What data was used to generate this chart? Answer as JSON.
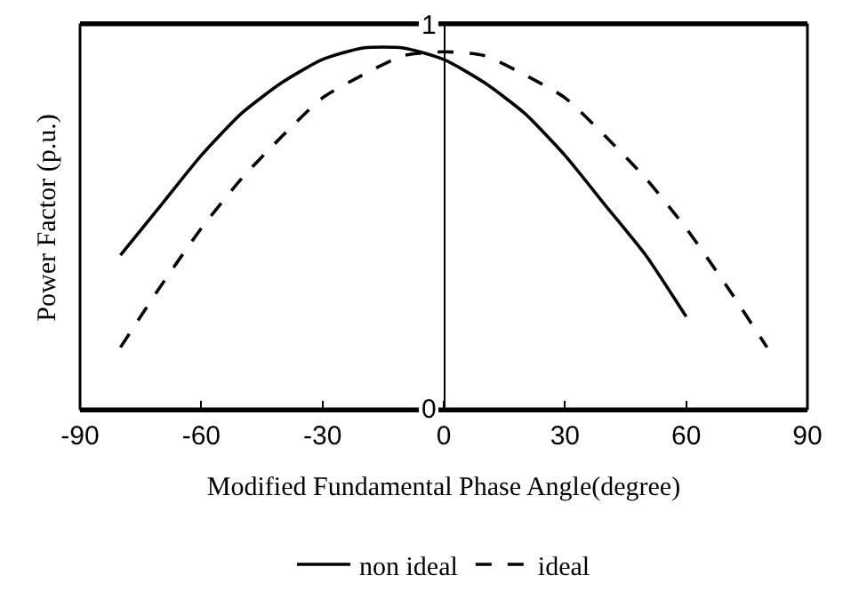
{
  "chart_data": {
    "type": "line",
    "xlabel": "Modified Fundamental Phase Angle(degree)",
    "ylabel": "Power Factor (p.u.)",
    "xlim": [
      -90,
      90
    ],
    "xticks": [
      -90,
      -60,
      -30,
      0,
      30,
      60,
      90
    ],
    "ylim": [
      0,
      1
    ],
    "yticks": [
      0,
      1
    ],
    "grid": false,
    "legend": "bottom",
    "marker": "none",
    "series": [
      {
        "name": "non ideal",
        "color": "#000000",
        "line_style": "solid",
        "x": [
          -80,
          -70,
          -60,
          -50,
          -40,
          -30,
          -20,
          -10,
          0,
          10,
          20,
          30,
          40,
          50,
          60
        ],
        "values": [
          0.4,
          0.53,
          0.66,
          0.77,
          0.85,
          0.91,
          0.94,
          0.94,
          0.91,
          0.85,
          0.77,
          0.66,
          0.53,
          0.4,
          0.24
        ]
      },
      {
        "name": "ideal",
        "color": "#000000",
        "line_style": "dashed",
        "x": [
          -80,
          -70,
          -60,
          -50,
          -40,
          -30,
          -20,
          -10,
          0,
          10,
          20,
          30,
          40,
          50,
          60,
          70,
          80
        ],
        "values": [
          0.16,
          0.32,
          0.47,
          0.6,
          0.71,
          0.81,
          0.87,
          0.92,
          0.93,
          0.92,
          0.87,
          0.81,
          0.71,
          0.6,
          0.47,
          0.32,
          0.16
        ]
      }
    ]
  }
}
